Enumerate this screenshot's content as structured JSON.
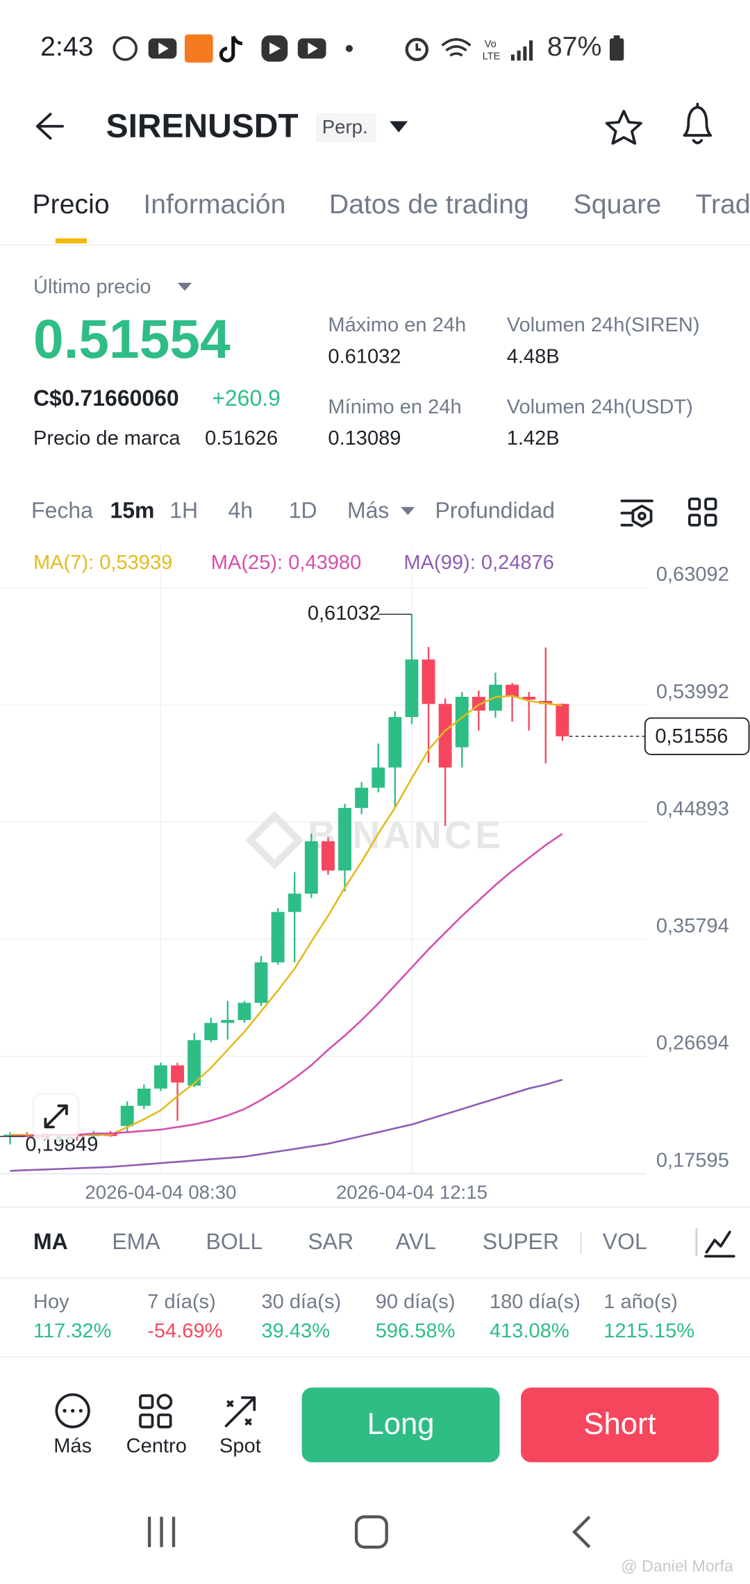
{
  "status_bar": {
    "time": "2:43",
    "battery": "87%"
  },
  "header": {
    "symbol": "SIRENUSDT",
    "contract": "Perp."
  },
  "tabs": [
    "Precio",
    "Información",
    "Datos de trading",
    "Square",
    "Trad"
  ],
  "price": {
    "label": "Último precio",
    "last": "0.51554",
    "fiat": "C$0.71660060",
    "change": "+260.9",
    "mark_label": "Precio de marca",
    "mark": "0.51626"
  },
  "stats": [
    {
      "label": "Máximo en 24h",
      "value": "0.61032"
    },
    {
      "label": "Volumen 24h(SIREN)",
      "value": "4.48B"
    },
    {
      "label": "Mínimo en 24h",
      "value": "0.13089"
    },
    {
      "label": "Volumen 24h(USDT)",
      "value": "1.42B"
    }
  ],
  "intervals": [
    "Fecha",
    "15m",
    "1H",
    "4h",
    "1D",
    "Más",
    "Profundidad"
  ],
  "chart_data": {
    "type": "candlestick",
    "watermark": "BINANCE",
    "categories": [
      null,
      null,
      null,
      null,
      null,
      null,
      null,
      null,
      null,
      "2026-04-04 08:30",
      null,
      null,
      null,
      null,
      null,
      null,
      null,
      null,
      null,
      null,
      null,
      null,
      null,
      null,
      "2026-04-04 12:15",
      null,
      null,
      null,
      null,
      null,
      null,
      null,
      null,
      null
    ],
    "open": [
      0.205,
      0.206,
      0.205,
      0.2045,
      0.206,
      0.205,
      0.207,
      0.2128,
      0.2285,
      0.2419,
      0.2599,
      0.2442,
      0.2795,
      0.2929,
      0.2952,
      0.3085,
      0.3399,
      0.3791,
      0.3933,
      0.434,
      0.4113,
      0.4599,
      0.4756,
      0.4913,
      0.5305,
      0.5752,
      0.5407,
      0.507,
      0.5462,
      0.5355,
      0.5556,
      0.5462,
      0.543,
      0.5407
    ],
    "high": [
      0.208,
      0.208,
      0.207,
      0.207,
      0.208,
      0.209,
      0.209,
      0.232,
      0.245,
      0.262,
      0.262,
      0.285,
      0.297,
      0.31,
      0.31,
      0.345,
      0.382,
      0.41,
      0.44,
      0.437,
      0.463,
      0.48,
      0.51,
      0.535,
      0.61032,
      0.585,
      0.545,
      0.55,
      0.551,
      0.565,
      0.557,
      0.55,
      0.5846,
      0.541
    ],
    "low": [
      0.19849,
      0.204,
      0.2035,
      0.201,
      0.2015,
      0.203,
      0.2045,
      0.208,
      0.226,
      0.24,
      0.2168,
      0.243,
      0.278,
      0.28,
      0.293,
      0.306,
      0.338,
      0.34,
      0.39,
      0.408,
      0.395,
      0.455,
      0.472,
      0.46,
      0.525,
      0.495,
      0.4458,
      0.4913,
      0.52,
      0.53,
      0.527,
      0.52,
      0.4945,
      0.512
    ],
    "close": [
      0.206,
      0.205,
      0.2045,
      0.206,
      0.205,
      0.207,
      0.205,
      0.2285,
      0.2419,
      0.2599,
      0.2466,
      0.2795,
      0.2929,
      0.2952,
      0.3085,
      0.3399,
      0.3791,
      0.3933,
      0.434,
      0.4113,
      0.4599,
      0.4756,
      0.4913,
      0.5305,
      0.5752,
      0.5407,
      0.4913,
      0.5462,
      0.5355,
      0.5556,
      0.5462,
      0.544,
      0.5407,
      0.51556
    ],
    "series": [
      {
        "name": "MA(7): 0,53939",
        "color": "#e2bb1f",
        "values": [
          0.206,
          0.206,
          0.206,
          0.206,
          0.206,
          0.206,
          0.206,
          0.212,
          0.218,
          0.225,
          0.236,
          0.246,
          0.258,
          0.272,
          0.286,
          0.302,
          0.318,
          0.335,
          0.356,
          0.376,
          0.398,
          0.418,
          0.44,
          0.46,
          0.483,
          0.505,
          0.52,
          0.53,
          0.54,
          0.546,
          0.547,
          0.543,
          0.541,
          0.53939
        ]
      },
      {
        "name": "MA(25): 0,43980",
        "color": "#d54fad",
        "values": [
          0.205,
          0.205,
          0.206,
          0.206,
          0.206,
          0.207,
          0.207,
          0.208,
          0.209,
          0.21,
          0.212,
          0.214,
          0.217,
          0.221,
          0.226,
          0.233,
          0.241,
          0.25,
          0.26,
          0.272,
          0.283,
          0.295,
          0.308,
          0.322,
          0.336,
          0.35,
          0.363,
          0.376,
          0.388,
          0.4,
          0.411,
          0.421,
          0.431,
          0.4398
        ]
      },
      {
        "name": "MA(99): 0,24876",
        "color": "#8d5db3",
        "values": [
          0.178,
          0.1785,
          0.179,
          0.1795,
          0.18,
          0.1805,
          0.181,
          0.182,
          0.183,
          0.184,
          0.185,
          0.186,
          0.187,
          0.188,
          0.189,
          0.191,
          0.193,
          0.195,
          0.197,
          0.199,
          0.202,
          0.205,
          0.208,
          0.211,
          0.214,
          0.218,
          0.222,
          0.226,
          0.23,
          0.234,
          0.238,
          0.242,
          0.245,
          0.24876
        ]
      }
    ],
    "up_color": "#2ebd85",
    "down_color": "#f6465d",
    "max_label": "0,61032",
    "min_label": "0,19849",
    "last_label": "0,51556",
    "ylim": [
      0.17595,
      0.63092
    ],
    "yticks": [
      {
        "value": 0.63092,
        "label": "0,63092"
      },
      {
        "value": 0.53992,
        "label": "0,53992"
      },
      {
        "value": 0.44893,
        "label": "0,44893"
      },
      {
        "value": 0.35794,
        "label": "0,35794"
      },
      {
        "value": 0.26694,
        "label": "0,26694"
      },
      {
        "value": 0.17595,
        "label": "0,17595"
      }
    ],
    "grid": true
  },
  "indicators": [
    "MA",
    "EMA",
    "BOLL",
    "SAR",
    "AVL",
    "SUPER",
    "VOL"
  ],
  "performance": [
    {
      "label": "Hoy",
      "value": "117.32%"
    },
    {
      "label": "7 día(s)",
      "value": "-54.69%"
    },
    {
      "label": "30 día(s)",
      "value": "39.43%"
    },
    {
      "label": "90 día(s)",
      "value": "596.58%"
    },
    {
      "label": "180 día(s)",
      "value": "413.08%"
    },
    {
      "label": "1 año(s)",
      "value": "1215.15%"
    }
  ],
  "actions": [
    "Más",
    "Centro",
    "Spot"
  ],
  "trade_buttons": [
    "Long",
    "Short"
  ],
  "credit": "@ Daniel Morfa"
}
